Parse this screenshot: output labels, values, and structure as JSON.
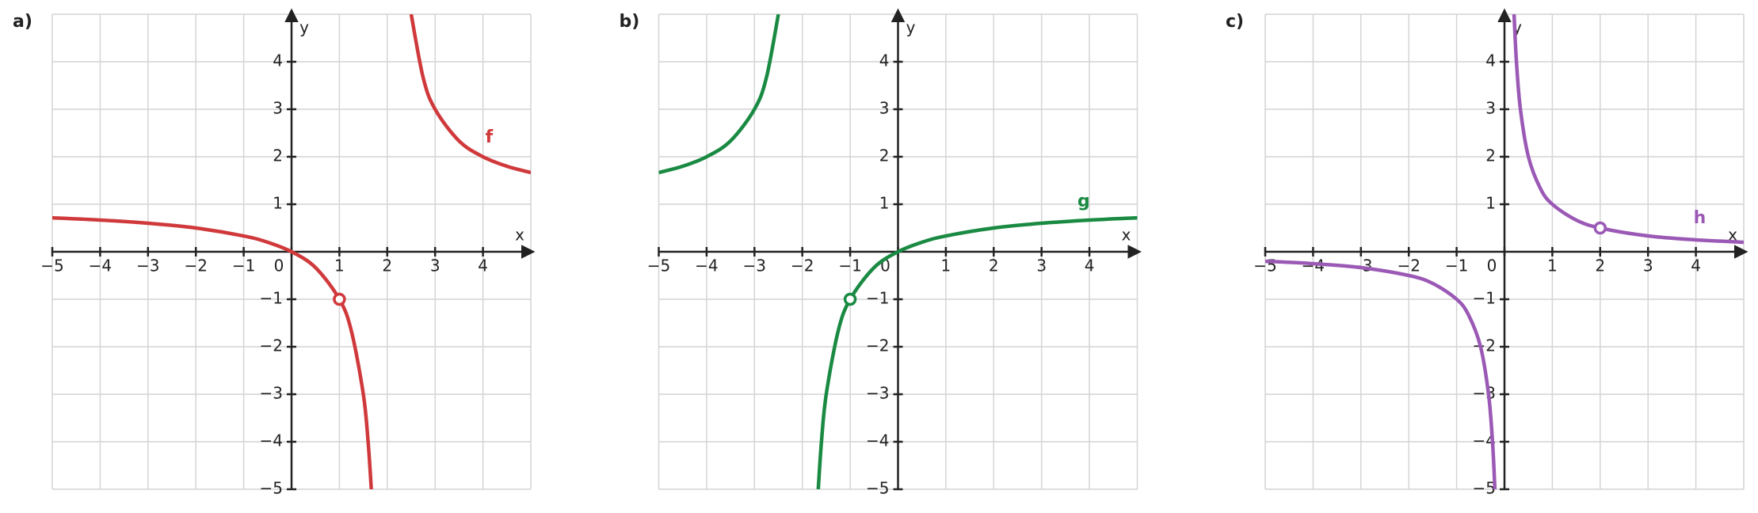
{
  "chart_data": [
    {
      "type": "line",
      "label": "a)",
      "x_label": "x",
      "y_label": "y",
      "xlim": [
        -5,
        5
      ],
      "ylim": [
        -5,
        5
      ],
      "grid": true,
      "xticks": [
        {
          "value": -5,
          "label": "−5"
        },
        {
          "value": -4,
          "label": "−4"
        },
        {
          "value": -3,
          "label": "−3"
        },
        {
          "value": -2,
          "label": "−2"
        },
        {
          "value": -1,
          "label": "−1"
        },
        0,
        1,
        2,
        3,
        4
      ],
      "yticks": [
        {
          "value": -5,
          "label": "−5"
        },
        {
          "value": -4,
          "label": "−4"
        },
        {
          "value": -3,
          "label": "−3"
        },
        {
          "value": -2,
          "label": "−2"
        },
        {
          "value": -1,
          "label": "−1"
        },
        1,
        2,
        3,
        4
      ],
      "series": [
        {
          "name": "f",
          "color": "#d0393b",
          "x": [
            -5,
            -4,
            -3,
            -2,
            -1,
            -0.5,
            0,
            0.5,
            1,
            1.25,
            1.5,
            1.6,
            1.667,
            2,
            2.5,
            2.75,
            3,
            3.5,
            4,
            4.5,
            5
          ],
          "values": [
            0.714,
            0.667,
            0.6,
            0.5,
            0.333,
            0.2,
            0,
            -0.333,
            -1,
            -1.667,
            -3,
            -4,
            -5,
            null,
            5,
            3.667,
            3,
            2.333,
            2,
            1.8,
            1.667
          ],
          "open_points": {
            "x": [
              1
            ],
            "y": [
              -1
            ]
          }
        }
      ]
    },
    {
      "type": "line",
      "label": "b)",
      "x_label": "x",
      "y_label": "y",
      "xlim": [
        -5,
        5
      ],
      "ylim": [
        -5,
        5
      ],
      "grid": true,
      "xticks": [
        {
          "value": -5,
          "label": "−5"
        },
        {
          "value": -4,
          "label": "−4"
        },
        {
          "value": -3,
          "label": "−3"
        },
        {
          "value": -2,
          "label": "−2"
        },
        {
          "value": -1,
          "label": "−1"
        },
        0,
        1,
        2,
        3,
        4
      ],
      "yticks": [
        {
          "value": -5,
          "label": "−5"
        },
        {
          "value": -4,
          "label": "−4"
        },
        {
          "value": -3,
          "label": "−3"
        },
        {
          "value": -2,
          "label": "−2"
        },
        {
          "value": -1,
          "label": "−1"
        },
        1,
        2,
        3,
        4
      ],
      "series": [
        {
          "name": "g",
          "color": "#1a8a43",
          "x": [
            -5,
            -4.5,
            -4,
            -3.5,
            -3,
            -2.75,
            -2.5,
            -2,
            -1.667,
            -1.6,
            -1.5,
            -1.25,
            -1,
            -0.5,
            0,
            0.5,
            1,
            2,
            3,
            4,
            5
          ],
          "values": [
            1.667,
            1.8,
            2,
            2.333,
            3,
            3.667,
            5,
            null,
            -5,
            -4,
            -3,
            -1.667,
            -1,
            -0.333,
            0,
            0.2,
            0.333,
            0.5,
            0.6,
            0.667,
            0.714
          ],
          "open_points": {
            "x": [
              -1
            ],
            "y": [
              -1
            ]
          }
        }
      ]
    },
    {
      "type": "line",
      "label": "c)",
      "x_label": "x",
      "y_label": "y",
      "xlim": [
        -5,
        5
      ],
      "ylim": [
        -5,
        5
      ],
      "grid": true,
      "xticks": [
        {
          "value": -5,
          "label": "−5"
        },
        {
          "value": -4,
          "label": "−4"
        },
        {
          "value": -3,
          "label": "−3"
        },
        {
          "value": -2,
          "label": "−2"
        },
        {
          "value": -1,
          "label": "−1"
        },
        0,
        1,
        2,
        3,
        4
      ],
      "yticks": [
        {
          "value": -5,
          "label": "−5"
        },
        {
          "value": -4,
          "label": "−4"
        },
        {
          "value": -3,
          "label": "−3"
        },
        {
          "value": -2,
          "label": "−2"
        },
        {
          "value": -1,
          "label": "−1"
        },
        1,
        2,
        3,
        4
      ],
      "series": [
        {
          "name": "h",
          "color": "#9b59b6",
          "x": [
            -5,
            -4,
            -3,
            -2,
            -1.5,
            -1,
            -0.75,
            -0.5,
            -0.333,
            -0.25,
            -0.2,
            0,
            0.2,
            0.25,
            0.333,
            0.5,
            0.75,
            1,
            1.5,
            2,
            3,
            4,
            5
          ],
          "values": [
            -0.2,
            -0.25,
            -0.333,
            -0.5,
            -0.667,
            -1,
            -1.333,
            -2,
            -3,
            -4,
            -5,
            null,
            5,
            4,
            3,
            2,
            1.333,
            1,
            0.667,
            0.5,
            0.333,
            0.25,
            0.2
          ],
          "open_points": {
            "x": [
              2
            ],
            "y": [
              0.5
            ]
          }
        }
      ]
    }
  ]
}
